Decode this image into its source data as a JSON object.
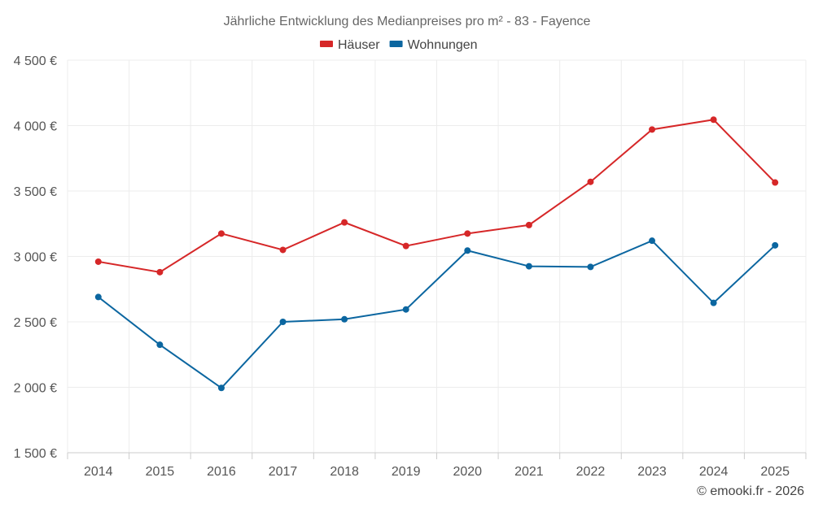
{
  "chart_data": {
    "type": "line",
    "title": "Jährliche Entwicklung des Medianpreises pro m² - 83 - Fayence",
    "xlabel": "",
    "ylabel": "",
    "categories": [
      "2014",
      "2015",
      "2016",
      "2017",
      "2018",
      "2019",
      "2020",
      "2021",
      "2022",
      "2023",
      "2024",
      "2025"
    ],
    "ylim": [
      1500,
      4500
    ],
    "yticks": [
      1500,
      2000,
      2500,
      3000,
      3500,
      4000,
      4500
    ],
    "ytick_labels": [
      "1 500 €",
      "2 000 €",
      "2 500 €",
      "3 000 €",
      "3 500 €",
      "4 000 €",
      "4 500 €"
    ],
    "grid": true,
    "legend_position": "top-center",
    "series": [
      {
        "name": "Häuser",
        "color": "#d62728",
        "values": [
          2960,
          2880,
          3175,
          3050,
          3260,
          3080,
          3175,
          3240,
          3570,
          3970,
          4045,
          3565
        ]
      },
      {
        "name": "Wohnungen",
        "color": "#0b66a0",
        "values": [
          2690,
          2325,
          1995,
          2500,
          2520,
          2595,
          3045,
          2925,
          2920,
          3120,
          2645,
          3085
        ]
      }
    ]
  },
  "credit": "© emooki.fr - 2026"
}
